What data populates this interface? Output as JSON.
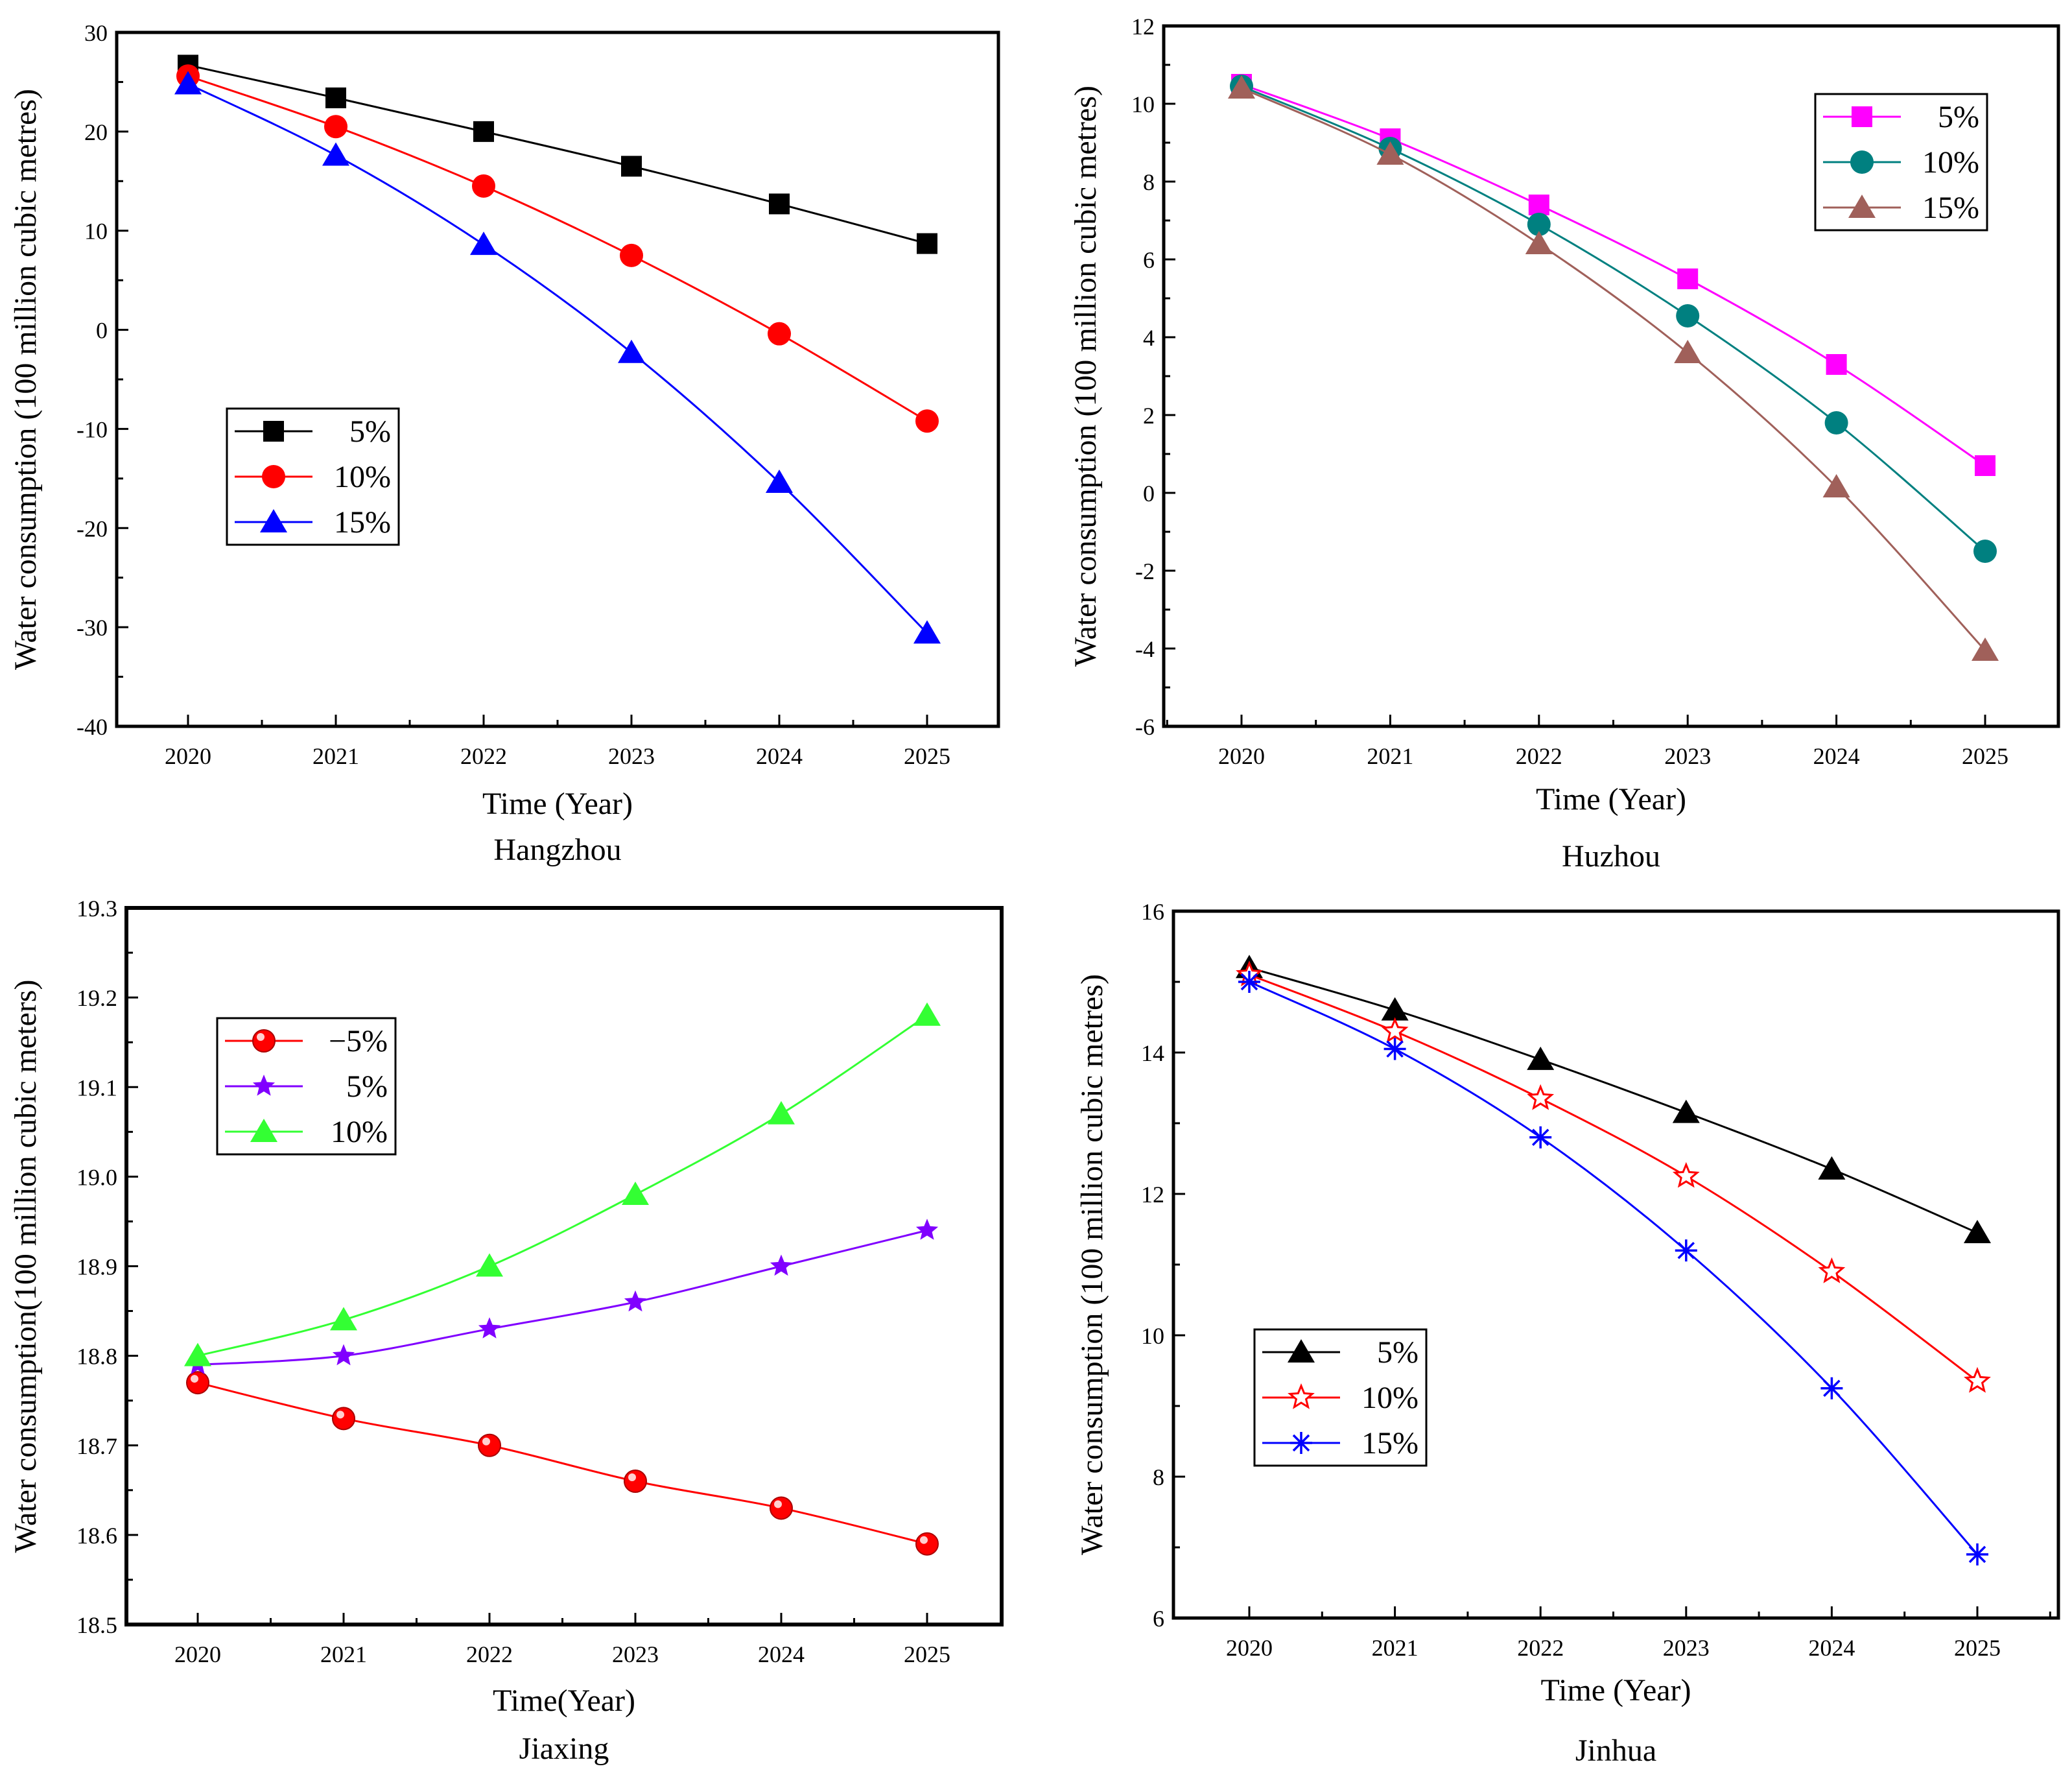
{
  "chart_data": [
    {
      "type": "line",
      "caption": "Hangzhou",
      "xlabel": "Time (Year)",
      "ylabel": "Water consumption (100 million cubic metres)",
      "categories": [
        "2020",
        "2021",
        "2022",
        "2023",
        "2024",
        "2025"
      ],
      "ylim": [
        -40,
        30
      ],
      "yticks": [
        -40,
        -30,
        -20,
        -10,
        0,
        10,
        20,
        30
      ],
      "ytick_labels": [
        "-40",
        "-30",
        "-20",
        "-10",
        "0",
        "10",
        "20",
        "30"
      ],
      "legend_position": "middle-left",
      "series": [
        {
          "name": "5%",
          "color": "#000000",
          "marker": "square",
          "values": [
            26.7,
            23.4,
            20.0,
            16.5,
            12.7,
            8.7
          ]
        },
        {
          "name": "10%",
          "color": "#ff0000",
          "marker": "circle",
          "values": [
            25.6,
            20.5,
            14.5,
            7.5,
            -0.4,
            -9.2
          ]
        },
        {
          "name": "15%",
          "color": "#0000ff",
          "marker": "triangle",
          "values": [
            24.8,
            17.6,
            8.6,
            -2.3,
            -15.4,
            -30.6
          ]
        }
      ]
    },
    {
      "type": "line",
      "caption": "Huzhou",
      "xlabel": "Time (Year)",
      "ylabel": "Water consumption (100 million cubic metres)",
      "categories": [
        "2020",
        "2021",
        "2022",
        "2023",
        "2024",
        "2025"
      ],
      "ylim": [
        -6,
        12
      ],
      "yticks": [
        -6,
        -4,
        -2,
        0,
        2,
        4,
        6,
        8,
        10,
        12
      ],
      "ytick_labels": [
        "-6",
        "-4",
        "-2",
        "0",
        "2",
        "4",
        "6",
        "8",
        "10",
        "12"
      ],
      "legend_position": "top-right",
      "series": [
        {
          "name": "5%",
          "color": "#ff00ff",
          "marker": "square",
          "values": [
            10.5,
            9.1,
            7.4,
            5.5,
            3.3,
            0.7
          ]
        },
        {
          "name": "10%",
          "color": "#008080",
          "marker": "circle",
          "values": [
            10.45,
            8.85,
            6.9,
            4.55,
            1.8,
            -1.5
          ]
        },
        {
          "name": "15%",
          "color": "#a0605a",
          "marker": "triangle",
          "values": [
            10.4,
            8.7,
            6.4,
            3.6,
            0.15,
            -4.05
          ]
        }
      ]
    },
    {
      "type": "line",
      "caption": "Jiaxing",
      "xlabel": "Time(Year)",
      "ylabel": "Water consumption(100 million cubic meters)",
      "categories": [
        "2020",
        "2021",
        "2022",
        "2023",
        "2024",
        "2025"
      ],
      "ylim": [
        18.5,
        19.3
      ],
      "yticks": [
        18.5,
        18.6,
        18.7,
        18.8,
        18.9,
        19.0,
        19.1,
        19.2,
        19.3
      ],
      "ytick_labels": [
        "18.5",
        "18.6",
        "18.7",
        "18.8",
        "18.9",
        "19.0",
        "19.1",
        "19.2",
        "19.3"
      ],
      "legend_position": "top-left",
      "series": [
        {
          "name": "−5%",
          "color": "#ff0000",
          "marker": "ball",
          "values": [
            18.77,
            18.73,
            18.7,
            18.66,
            18.63,
            18.59
          ]
        },
        {
          "name": "5%",
          "color": "#8000ff",
          "marker": "star",
          "values": [
            18.79,
            18.8,
            18.83,
            18.86,
            18.9,
            18.94
          ]
        },
        {
          "name": "10%",
          "color": "#33ff33",
          "marker": "triangle",
          "values": [
            18.8,
            18.84,
            18.9,
            18.98,
            19.07,
            19.18
          ]
        }
      ]
    },
    {
      "type": "line",
      "caption": "Jinhua",
      "xlabel": "Time (Year)",
      "ylabel": "Water consumption (100 million cubic metres)",
      "categories": [
        "2020",
        "2021",
        "2022",
        "2023",
        "2024",
        "2025"
      ],
      "ylim": [
        6,
        16
      ],
      "yticks": [
        6,
        8,
        10,
        12,
        14,
        16
      ],
      "ytick_labels": [
        "6",
        "8",
        "10",
        "12",
        "14",
        "16"
      ],
      "legend_position": "bottom-left",
      "series": [
        {
          "name": "5%",
          "color": "#000000",
          "marker": "triangle",
          "values": [
            15.2,
            14.6,
            13.9,
            13.15,
            12.35,
            11.45
          ]
        },
        {
          "name": "10%",
          "color": "#ff0000",
          "marker": "star-open",
          "values": [
            15.1,
            14.3,
            13.35,
            12.25,
            10.9,
            9.35
          ]
        },
        {
          "name": "15%",
          "color": "#0000ff",
          "marker": "asterisk",
          "values": [
            15.0,
            14.05,
            12.8,
            11.2,
            9.25,
            6.9
          ]
        }
      ]
    }
  ]
}
